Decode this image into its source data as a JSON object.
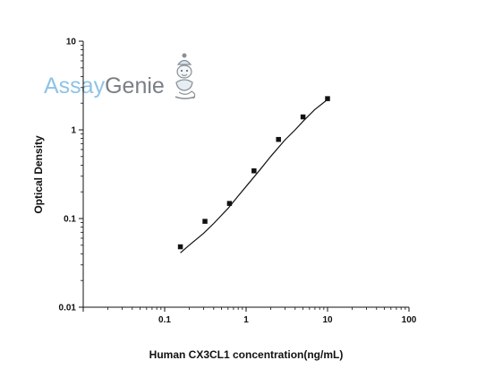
{
  "chart_data": {
    "type": "scatter",
    "title": "",
    "xlabel": "Human CX3CL1 concentration(ng/mL)",
    "ylabel": "Optical Density",
    "xscale": "log",
    "yscale": "log",
    "xlim": [
      0.01,
      100
    ],
    "ylim": [
      0.01,
      10
    ],
    "x_ticks": [
      "0.1",
      "1",
      "10",
      "100"
    ],
    "y_ticks": [
      "0.01",
      "0.1",
      "1",
      "10"
    ],
    "grid": false,
    "legend": "none",
    "series": [
      {
        "points": [
          {
            "x": 0.156,
            "y": 0.048
          },
          {
            "x": 0.3125,
            "y": 0.093
          },
          {
            "x": 0.625,
            "y": 0.148
          },
          {
            "x": 1.25,
            "y": 0.345
          },
          {
            "x": 2.5,
            "y": 0.78
          },
          {
            "x": 5,
            "y": 1.4
          },
          {
            "x": 10,
            "y": 2.25
          }
        ]
      }
    ],
    "fit_curve": [
      {
        "x": 0.156,
        "y": 0.041
      },
      {
        "x": 0.2,
        "y": 0.05
      },
      {
        "x": 0.3,
        "y": 0.068
      },
      {
        "x": 0.4,
        "y": 0.088
      },
      {
        "x": 0.6,
        "y": 0.13
      },
      {
        "x": 0.8,
        "y": 0.18
      },
      {
        "x": 1.0,
        "y": 0.23
      },
      {
        "x": 1.5,
        "y": 0.36
      },
      {
        "x": 2.0,
        "y": 0.5
      },
      {
        "x": 3.0,
        "y": 0.77
      },
      {
        "x": 4.0,
        "y": 1.0
      },
      {
        "x": 5.0,
        "y": 1.25
      },
      {
        "x": 7.0,
        "y": 1.7
      },
      {
        "x": 10,
        "y": 2.2
      }
    ]
  },
  "logo": {
    "text_part1": "Assay",
    "text_part2": "Genie",
    "color_part1": "#8fc3e6",
    "color_part2": "#7a7f86",
    "icon": "genie-icon"
  },
  "colors": {
    "axis": "#111111",
    "marker": "#111111",
    "curve": "#111111"
  }
}
